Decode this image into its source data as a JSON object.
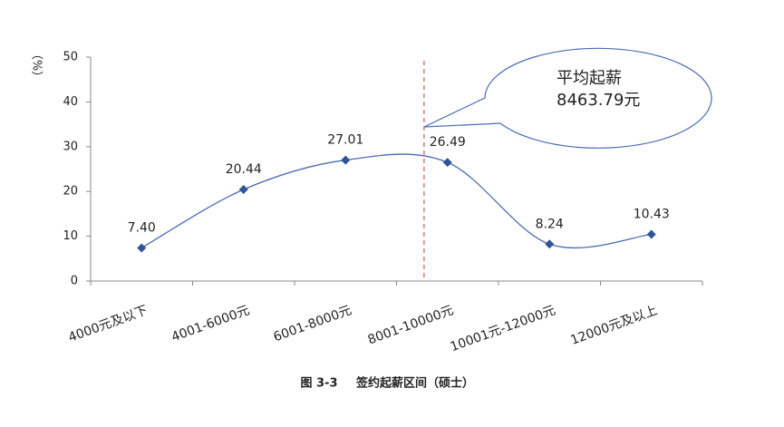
{
  "chart_data": {
    "type": "line",
    "categories": [
      "4000元及以下",
      "4001-6000元",
      "6001-8000元",
      "8001-10000元",
      "10001元-12000元",
      "12000元及以上"
    ],
    "values": [
      7.4,
      20.44,
      27.01,
      26.49,
      8.24,
      10.43
    ],
    "value_labels": [
      "7.40",
      "20.44",
      "27.01",
      "26.49",
      "8.24",
      "10.43"
    ],
    "color": "#4a6cb3",
    "marker_color": "#2f5597",
    "ylabel": "（%）",
    "ylim": [
      0,
      50
    ],
    "yticks": [
      0,
      10,
      20,
      30,
      40,
      50
    ],
    "annotation": [
      "平均起薪",
      "8463.79元"
    ],
    "figure_label": "图 3-3",
    "caption": "签约起薪区间（硕士）"
  }
}
